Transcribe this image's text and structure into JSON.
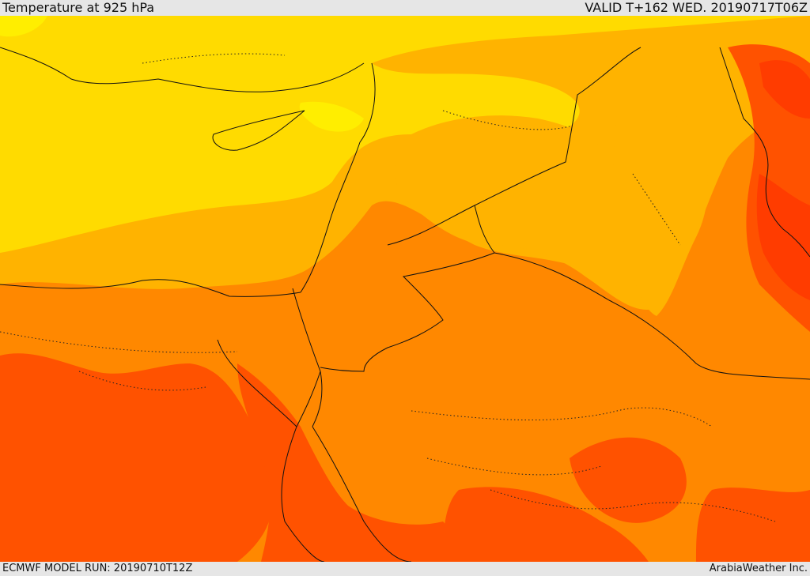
{
  "header": {
    "title": "Temperature at 925 hPa",
    "valid": "VALID T+162 WED. 20190717T06Z"
  },
  "footer": {
    "model_run": "ECMWF MODEL RUN: 20190710T12Z",
    "credit": "ArabiaWeather Inc."
  },
  "palette": {
    "sea": "#ffdb00",
    "bright_yellow": "#ffee00",
    "gold": "#ffb300",
    "orange": "#ff8800",
    "dark_orange": "#ff5200",
    "red_orange": "#ff3c00",
    "borders": "#111111"
  }
}
